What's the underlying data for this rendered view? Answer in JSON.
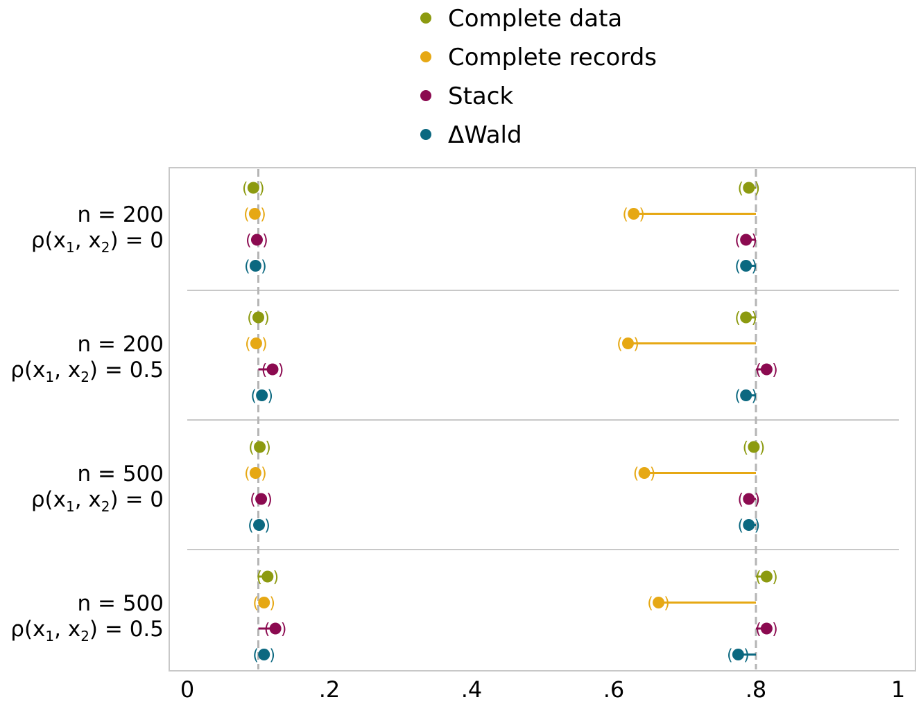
{
  "chart_data": {
    "type": "scatter",
    "legend": {
      "placement": "top-center",
      "entries": [
        {
          "name": "Complete data",
          "color": "#8c9a10"
        },
        {
          "name": "Complete records",
          "color": "#e6a814"
        },
        {
          "name": "Stack",
          "color": "#8b0a50"
        },
        {
          "name": "ΔWald",
          "color": "#0b6880"
        }
      ]
    },
    "panels": [
      {
        "label_line1": "n = 200",
        "label_line2_prefix": "ρ(x",
        "label_line2_sub1": "1",
        "label_line2_mid": ", x",
        "label_line2_sub2": "2",
        "label_line2_suffix": ") = 0"
      },
      {
        "label_line1": "n = 200",
        "label_line2_prefix": "ρ(x",
        "label_line2_sub1": "1",
        "label_line2_mid": ", x",
        "label_line2_sub2": "2",
        "label_line2_suffix": ") = 0.5"
      },
      {
        "label_line1": "n = 500",
        "label_line2_prefix": "ρ(x",
        "label_line2_sub1": "1",
        "label_line2_mid": ", x",
        "label_line2_sub2": "2",
        "label_line2_suffix": ") = 0"
      },
      {
        "label_line1": "n = 500",
        "label_line2_prefix": "ρ(x",
        "label_line2_sub1": "1",
        "label_line2_mid": ", x",
        "label_line2_sub2": "2",
        "label_line2_suffix": ") = 0.5"
      }
    ],
    "reference_lines": [
      0.1,
      0.8
    ],
    "x_ticks": [
      {
        "value": 0,
        "label": "0"
      },
      {
        "value": 0.2,
        "label": ".2"
      },
      {
        "value": 0.4,
        "label": ".4"
      },
      {
        "value": 0.6,
        "label": ".6"
      },
      {
        "value": 0.8,
        "label": ".8"
      },
      {
        "value": 1,
        "label": "1"
      }
    ],
    "xlim": [
      -0.025,
      1.025
    ],
    "grid": false,
    "series": [
      {
        "name": "Complete data",
        "points": [
          {
            "panel": 0,
            "low_value": 0.093,
            "high_value": 0.79
          },
          {
            "panel": 1,
            "low_value": 0.1,
            "high_value": 0.786
          },
          {
            "panel": 2,
            "low_value": 0.102,
            "high_value": 0.797
          },
          {
            "panel": 3,
            "low_value": 0.113,
            "high_value": 0.815
          }
        ]
      },
      {
        "name": "Complete records",
        "points": [
          {
            "panel": 0,
            "low_value": 0.095,
            "high_value": 0.628
          },
          {
            "panel": 1,
            "low_value": 0.097,
            "high_value": 0.62
          },
          {
            "panel": 2,
            "low_value": 0.096,
            "high_value": 0.643
          },
          {
            "panel": 3,
            "low_value": 0.108,
            "high_value": 0.663
          }
        ]
      },
      {
        "name": "Stack",
        "points": [
          {
            "panel": 0,
            "low_value": 0.098,
            "high_value": 0.786
          },
          {
            "panel": 1,
            "low_value": 0.12,
            "high_value": 0.815
          },
          {
            "panel": 2,
            "low_value": 0.104,
            "high_value": 0.79
          },
          {
            "panel": 3,
            "low_value": 0.124,
            "high_value": 0.815
          }
        ]
      },
      {
        "name": "ΔWald",
        "points": [
          {
            "panel": 0,
            "low_value": 0.096,
            "high_value": 0.786
          },
          {
            "panel": 1,
            "low_value": 0.105,
            "high_value": 0.786
          },
          {
            "panel": 2,
            "low_value": 0.101,
            "high_value": 0.79
          },
          {
            "panel": 3,
            "low_value": 0.108,
            "high_value": 0.775
          }
        ]
      }
    ]
  }
}
